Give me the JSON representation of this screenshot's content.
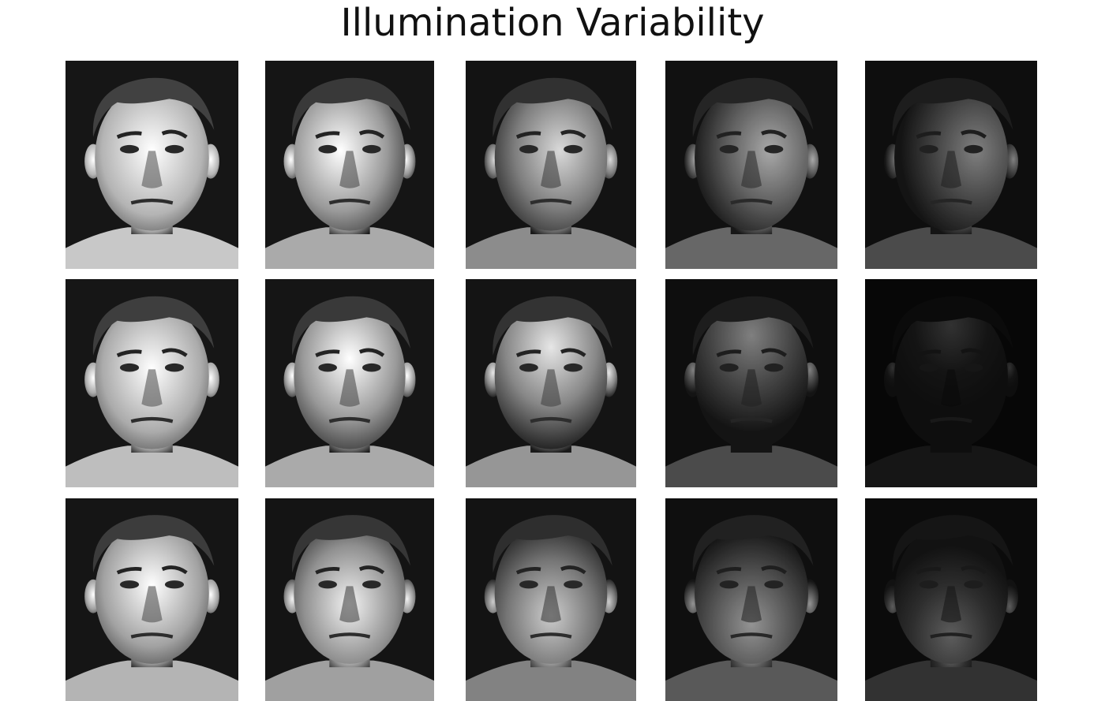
{
  "slide": {
    "title": "Illumination Variability"
  },
  "faces": [
    {
      "row": 0,
      "col": 0,
      "lighting": "frontal",
      "brightness": 1.0
    },
    {
      "row": 0,
      "col": 1,
      "lighting": "left-slight",
      "brightness": 0.85
    },
    {
      "row": 0,
      "col": 2,
      "lighting": "left-strong",
      "brightness": 0.7
    },
    {
      "row": 0,
      "col": 3,
      "lighting": "left-side",
      "brightness": 0.55
    },
    {
      "row": 0,
      "col": 4,
      "lighting": "left-extreme",
      "brightness": 0.45
    },
    {
      "row": 1,
      "col": 0,
      "lighting": "frontal-high",
      "brightness": 0.95
    },
    {
      "row": 1,
      "col": 1,
      "lighting": "top-slight",
      "brightness": 0.85
    },
    {
      "row": 1,
      "col": 2,
      "lighting": "top",
      "brightness": 0.75
    },
    {
      "row": 1,
      "col": 3,
      "lighting": "top-strong",
      "brightness": 0.45
    },
    {
      "row": 1,
      "col": 4,
      "lighting": "top-extreme",
      "brightness": 0.2
    },
    {
      "row": 2,
      "col": 0,
      "lighting": "frontal-low",
      "brightness": 0.9
    },
    {
      "row": 2,
      "col": 1,
      "lighting": "bottom-slight",
      "brightness": 0.8
    },
    {
      "row": 2,
      "col": 2,
      "lighting": "bottom",
      "brightness": 0.65
    },
    {
      "row": 2,
      "col": 3,
      "lighting": "bottom-strong",
      "brightness": 0.5
    },
    {
      "row": 2,
      "col": 4,
      "lighting": "bottom-extreme",
      "brightness": 0.35
    }
  ]
}
